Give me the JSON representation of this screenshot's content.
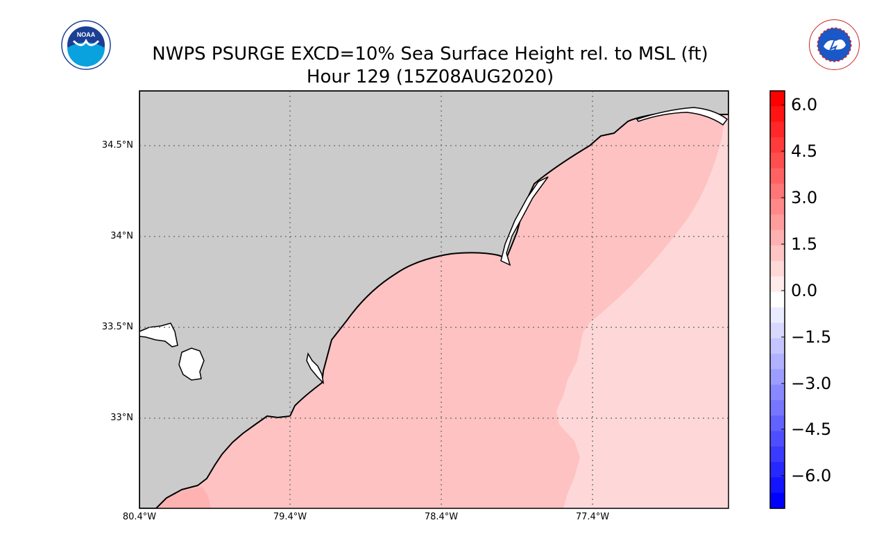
{
  "title": {
    "line1": "NWPS PSURGE EXCD=10% Sea Surface Height rel. to MSL (ft)",
    "line2": "Hour 129 (15Z08AUG2020)"
  },
  "logos": {
    "left": {
      "icon": "noaa-logo",
      "text": "NOAA"
    },
    "right": {
      "icon": "nws-logo",
      "text": "NATIONAL WEATHER SERVICE"
    }
  },
  "map": {
    "lat_labels": [
      "34.5°N",
      "34°N",
      "33.5°N",
      "33°N"
    ],
    "lon_labels": [
      "80.4°W",
      "79.4°W",
      "78.4°W",
      "77.4°W"
    ],
    "extent": {
      "lon_min": -80.4,
      "lon_max": -76.5,
      "lat_min": 32.5,
      "lat_max": 34.8
    },
    "land_color": "#cbcbcb",
    "grid": "dotted"
  },
  "colorbar": {
    "labels": [
      "6.0",
      "4.5",
      "3.0",
      "1.5",
      "0.0",
      "−1.5",
      "−3.0",
      "−4.5",
      "−6.0"
    ],
    "min": -7.0,
    "max": 6.5
  },
  "colors": {
    "surge_low": "#fed8d8",
    "surge_mid": "#fec2c2",
    "surge_high": "#feb2b2"
  }
}
